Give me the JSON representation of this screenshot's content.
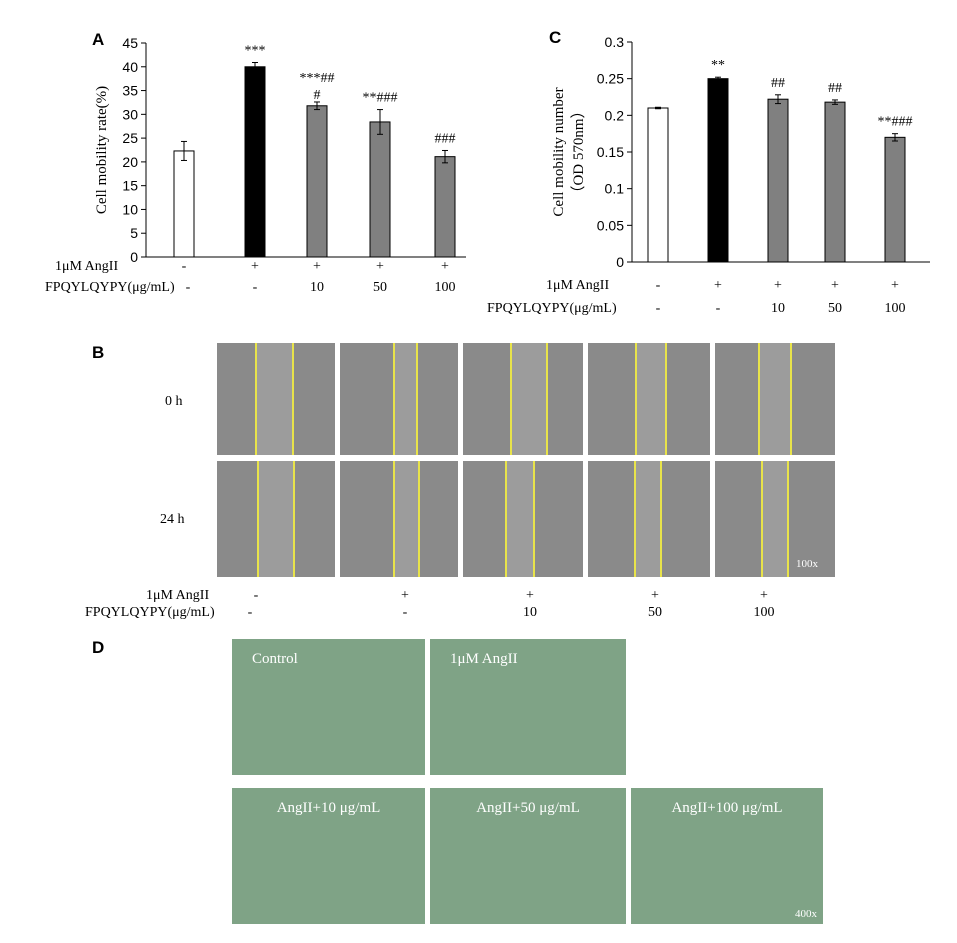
{
  "panels": {
    "a": "A",
    "b": "B",
    "c": "C",
    "d": "D"
  },
  "chart_data": [
    {
      "type": "bar",
      "panel": "A",
      "ylabel": "Cell mobility rate(%)",
      "ylim": [
        0,
        45
      ],
      "yticks": [
        0,
        5,
        10,
        15,
        20,
        25,
        30,
        35,
        40,
        45
      ],
      "values": [
        22.3,
        40.0,
        31.8,
        28.4,
        21.1
      ],
      "errors": [
        2.0,
        0.9,
        0.8,
        2.6,
        1.3
      ],
      "colors": [
        "#ffffff",
        "#000000",
        "#808080",
        "#808080",
        "#808080"
      ],
      "annotations": [
        "",
        "***",
        "***##\n#",
        "**###",
        "###"
      ],
      "rows": [
        {
          "label": "1μM AngII",
          "values": [
            "-",
            "+",
            "+",
            "+",
            "+"
          ]
        },
        {
          "label": "FPQYLQYPY(μg/mL)",
          "values": [
            "-",
            "-",
            "10",
            "50",
            "100"
          ]
        }
      ]
    },
    {
      "type": "bar",
      "panel": "C",
      "ylabel": "Cell mobility number\n（OD 570nm）",
      "ylim": [
        0,
        0.3
      ],
      "yticks": [
        "0",
        "0.05",
        "0.1",
        "0.15",
        "0.2",
        "0.25",
        "0.3"
      ],
      "values": [
        0.21,
        0.25,
        0.222,
        0.218,
        0.17
      ],
      "errors": [
        0.001,
        0.002,
        0.006,
        0.003,
        0.005
      ],
      "colors": [
        "#ffffff",
        "#000000",
        "#808080",
        "#808080",
        "#808080"
      ],
      "annotations": [
        "",
        "**",
        "##",
        "##",
        "**###"
      ],
      "rows": [
        {
          "label": "1μM AngII",
          "values": [
            "-",
            "+",
            "+",
            "+",
            "+"
          ]
        },
        {
          "label": "FPQYLQYPY(μg/mL)",
          "values": [
            "-",
            "-",
            "10",
            "50",
            "100"
          ]
        }
      ]
    }
  ],
  "scratch": {
    "rows": [
      "0 h",
      "24 h"
    ],
    "magnification": "100x",
    "cond_rows": [
      {
        "label": "1μM AngII",
        "values": [
          "-",
          "+",
          "+",
          "+",
          "+"
        ]
      },
      {
        "label": "FPQYLQYPY(μg/mL)",
        "values": [
          "-",
          "-",
          "10",
          "50",
          "100"
        ]
      }
    ]
  },
  "transwell": {
    "labels": [
      "Control",
      "1μM AngII",
      "AngII+10 μg/mL",
      "AngII+50 μg/mL",
      "AngII+100 μg/mL"
    ],
    "magnification": "400x"
  }
}
